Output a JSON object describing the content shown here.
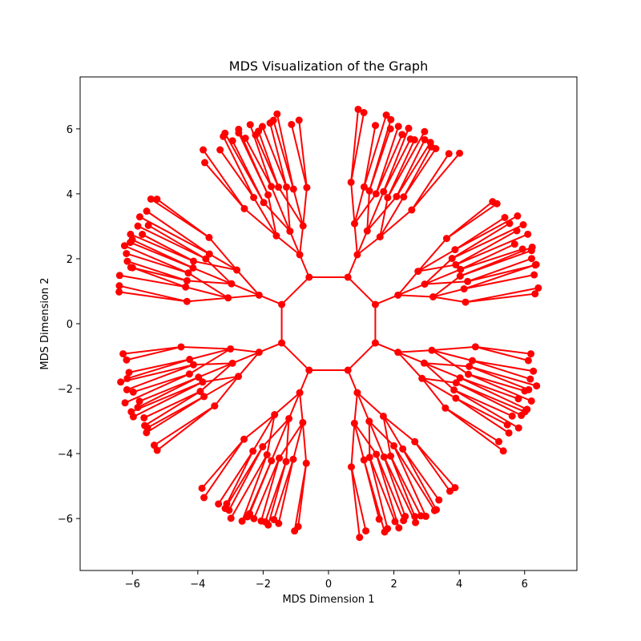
{
  "chart_data": {
    "type": "scatter",
    "title": "MDS Visualization of the Graph",
    "xlabel": "MDS Dimension 1",
    "ylabel": "MDS Dimension 2",
    "xlim": [
      -7.6,
      7.6
    ],
    "ylim": [
      -7.6,
      7.6
    ],
    "xticks": [
      -6,
      -4,
      -2,
      0,
      2,
      4,
      6
    ],
    "yticks": [
      -6,
      -4,
      -2,
      0,
      2,
      4,
      6
    ],
    "grid": false,
    "legend": "none",
    "edge_color": "#ff0000",
    "node_color": "#ff0000",
    "structure": {
      "center_ring_radius": 1.55,
      "branches": 8,
      "children_per_level1": 3,
      "children_per_level2": 3,
      "leaves_per_level3": 2,
      "level_radii": [
        2.3,
        3.2,
        4.4,
        6.45
      ],
      "level_spread_deg": [
        0,
        8,
        5.5,
        1.6
      ]
    }
  }
}
